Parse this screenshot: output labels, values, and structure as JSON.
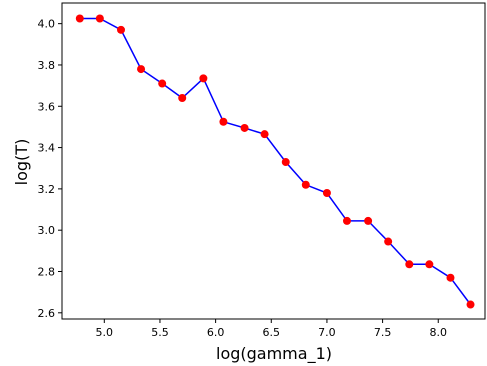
{
  "chart_data": {
    "type": "line",
    "xlabel": "log(gamma_1)",
    "ylabel": "log(T)",
    "xlim": [
      4.62,
      8.42
    ],
    "ylim": [
      2.57,
      4.1
    ],
    "xticks": [
      "5.0",
      "5.5",
      "6.0",
      "6.5",
      "7.0",
      "7.5",
      "8.0"
    ],
    "yticks": [
      "2.6",
      "2.8",
      "3.0",
      "3.2",
      "3.4",
      "3.6",
      "3.8",
      "4.0"
    ],
    "grid": false,
    "line_color": "#0000ff",
    "marker_color": "#ff0000",
    "series": [
      {
        "x": [
          4.78,
          4.96,
          5.15,
          5.33,
          5.52,
          5.7,
          5.89,
          6.07,
          6.26,
          6.44,
          6.63,
          6.81,
          7.0,
          7.18,
          7.37,
          7.55,
          7.74,
          7.92,
          8.11,
          8.29
        ],
        "y": [
          4.025,
          4.025,
          3.97,
          3.78,
          3.71,
          3.64,
          3.735,
          3.525,
          3.495,
          3.465,
          3.33,
          3.22,
          3.18,
          3.045,
          3.045,
          2.945,
          2.835,
          2.835,
          2.77,
          2.64
        ]
      }
    ]
  }
}
